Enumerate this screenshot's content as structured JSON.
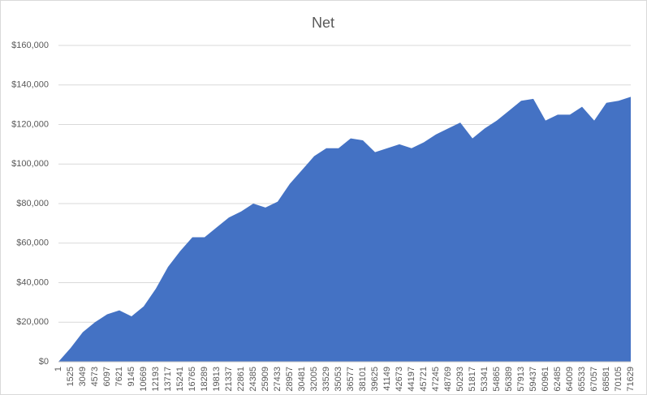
{
  "chart_data": {
    "type": "area",
    "title": "Net",
    "categories": [
      "1",
      "1525",
      "3049",
      "4573",
      "6097",
      "7621",
      "9145",
      "10669",
      "12193",
      "13717",
      "15241",
      "16765",
      "18289",
      "19813",
      "21337",
      "22861",
      "24385",
      "25909",
      "27433",
      "28957",
      "30481",
      "32005",
      "33529",
      "35053",
      "36577",
      "38101",
      "39625",
      "41149",
      "42673",
      "44197",
      "45721",
      "47245",
      "48769",
      "50293",
      "51817",
      "53341",
      "54865",
      "56389",
      "57913",
      "59437",
      "60961",
      "62485",
      "64009",
      "65533",
      "67057",
      "68581",
      "70105",
      "71629"
    ],
    "values": [
      0,
      7000,
      15000,
      20000,
      24000,
      26000,
      23000,
      28000,
      37000,
      48000,
      56000,
      63000,
      63000,
      68000,
      73000,
      76000,
      80000,
      78000,
      81000,
      90000,
      97000,
      104000,
      108000,
      108000,
      113000,
      112000,
      106000,
      108000,
      110000,
      108000,
      111000,
      115000,
      118000,
      121000,
      113000,
      118000,
      122000,
      127000,
      132000,
      133000,
      122000,
      125000,
      125000,
      129000,
      122000,
      131000,
      132000,
      134000
    ],
    "color": "#4472c4",
    "ylim": [
      0,
      160000
    ],
    "yticks": [
      {
        "value": 0,
        "label": "$0"
      },
      {
        "value": 20000,
        "label": "$20,000"
      },
      {
        "value": 40000,
        "label": "$40,000"
      },
      {
        "value": 60000,
        "label": "$60,000"
      },
      {
        "value": 80000,
        "label": "$80,000"
      },
      {
        "value": 100000,
        "label": "$100,000"
      },
      {
        "value": 120000,
        "label": "$120,000"
      },
      {
        "value": 140000,
        "label": "$140,000"
      },
      {
        "value": 160000,
        "label": "$160,000"
      }
    ],
    "grid": true
  }
}
